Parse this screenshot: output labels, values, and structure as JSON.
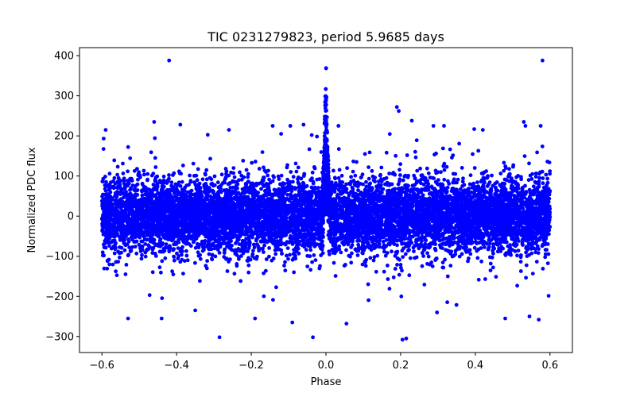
{
  "chart_data": {
    "type": "scatter",
    "title": "TIC 0231279823, period 5.9685 days",
    "xlabel": "Phase",
    "ylabel": "Normalized PDC flux",
    "xlim": [
      -0.66,
      0.66
    ],
    "ylim": [
      -340,
      420
    ],
    "xticks": [
      -0.6,
      -0.4,
      -0.2,
      0.0,
      0.2,
      0.4,
      0.6
    ],
    "xtick_labels": [
      "−0.6",
      "−0.4",
      "−0.2",
      "0.0",
      "0.2",
      "0.4",
      "0.6"
    ],
    "yticks": [
      -300,
      -200,
      -100,
      0,
      100,
      200,
      300,
      400
    ],
    "ytick_labels": [
      "−300",
      "−200",
      "−100",
      "0",
      "100",
      "200",
      "300",
      "400"
    ],
    "grid": false,
    "marker_color": "#0000ff",
    "series": [
      {
        "name": "PDC flux",
        "color": "#0000ff",
        "description_points": "dense band",
        "band": {
          "x_range": [
            -0.6,
            0.6
          ],
          "core_sigma": 45
        },
        "transit_peak": {
          "x_center": 0.0,
          "x_halfwidth": 0.012,
          "y_max": 385
        },
        "outliers": [
          [
            -0.42,
            388
          ],
          [
            0.58,
            388
          ],
          [
            -0.59,
            215
          ],
          [
            -0.46,
            235
          ],
          [
            -0.39,
            228
          ],
          [
            -0.12,
            205
          ],
          [
            -0.06,
            228
          ],
          [
            0.19,
            272
          ],
          [
            0.195,
            262
          ],
          [
            0.23,
            238
          ],
          [
            0.42,
            215
          ],
          [
            0.53,
            235
          ],
          [
            0.575,
            225
          ],
          [
            -0.53,
            -255
          ],
          [
            -0.44,
            -255
          ],
          [
            -0.285,
            -302
          ],
          [
            -0.09,
            -265
          ],
          [
            -0.035,
            -302
          ],
          [
            0.055,
            -268
          ],
          [
            0.205,
            -308
          ],
          [
            0.215,
            -305
          ],
          [
            0.48,
            -255
          ],
          [
            0.545,
            -250
          ],
          [
            0.57,
            -258
          ],
          [
            -0.19,
            -255
          ],
          [
            -0.35,
            -235
          ]
        ]
      }
    ]
  }
}
